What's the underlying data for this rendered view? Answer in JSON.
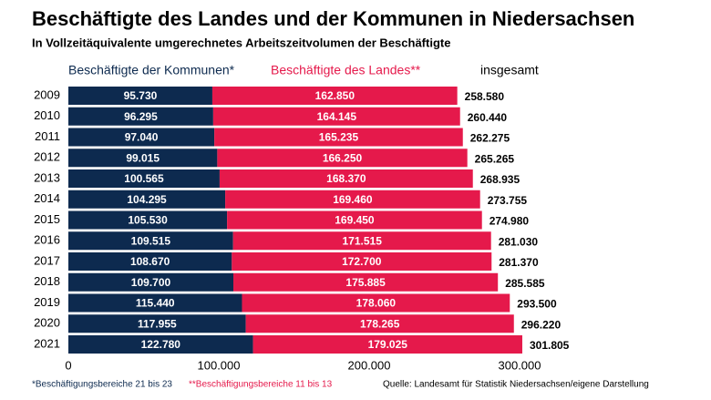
{
  "chart_data": {
    "type": "stacked-bar-horizontal",
    "title": "Beschäftigte des Landes und der Kommunen in Niedersachsen",
    "subtitle": "In Vollzeitäquivalente umgerechnetes Arbeitszeitvolumen der Beschäftigte",
    "categories": [
      "2009",
      "2010",
      "2011",
      "2012",
      "2013",
      "2014",
      "2015",
      "2016",
      "2017",
      "2018",
      "2019",
      "2020",
      "2021"
    ],
    "series": [
      {
        "name": "Beschäftigte der Kommunen*",
        "color": "#0d2a4f",
        "values": [
          95730,
          96295,
          97040,
          99015,
          100565,
          104295,
          105530,
          109515,
          108670,
          109700,
          115440,
          117955,
          122780
        ],
        "value_labels": [
          "95.730",
          "96.295",
          "97.040",
          "99.015",
          "100.565",
          "104.295",
          "105.530",
          "109.515",
          "108.670",
          "109.700",
          "115.440",
          "117.955",
          "122.780"
        ]
      },
      {
        "name": "Beschäftigte des Landes**",
        "color": "#e5194b",
        "values": [
          162850,
          164145,
          165235,
          166250,
          168370,
          169460,
          169450,
          171515,
          172700,
          175885,
          178060,
          178265,
          179025
        ],
        "value_labels": [
          "162.850",
          "164.145",
          "165.235",
          "166.250",
          "168.370",
          "169.460",
          "169.450",
          "171.515",
          "172.700",
          "175.885",
          "178.060",
          "178.265",
          "179.025"
        ]
      }
    ],
    "totals": {
      "name": "insgesamt",
      "values": [
        258580,
        260440,
        262275,
        265265,
        268935,
        273755,
        274980,
        281030,
        281370,
        285585,
        293500,
        296220,
        301805
      ],
      "value_labels": [
        "258.580",
        "260.440",
        "262.275",
        "265.265",
        "268.935",
        "273.755",
        "274.980",
        "281.030",
        "281.370",
        "285.585",
        "293.500",
        "296.220",
        "301.805"
      ]
    },
    "xlim": [
      0,
      300000
    ],
    "xticks": [
      0,
      {
        "value": 100000,
        "label": "100.000"
      },
      {
        "value": 200000,
        "label": "200.000"
      },
      {
        "value": 300000,
        "label": "300.000"
      }
    ],
    "footnotes": [
      "*Beschäftigungsbereiche 21 bis 23",
      "**Beschäftigungsbereiche 11 bis 13"
    ],
    "source": "Quelle: Landesamt für Statistik Niedersachsen/eigene Darstellung"
  }
}
